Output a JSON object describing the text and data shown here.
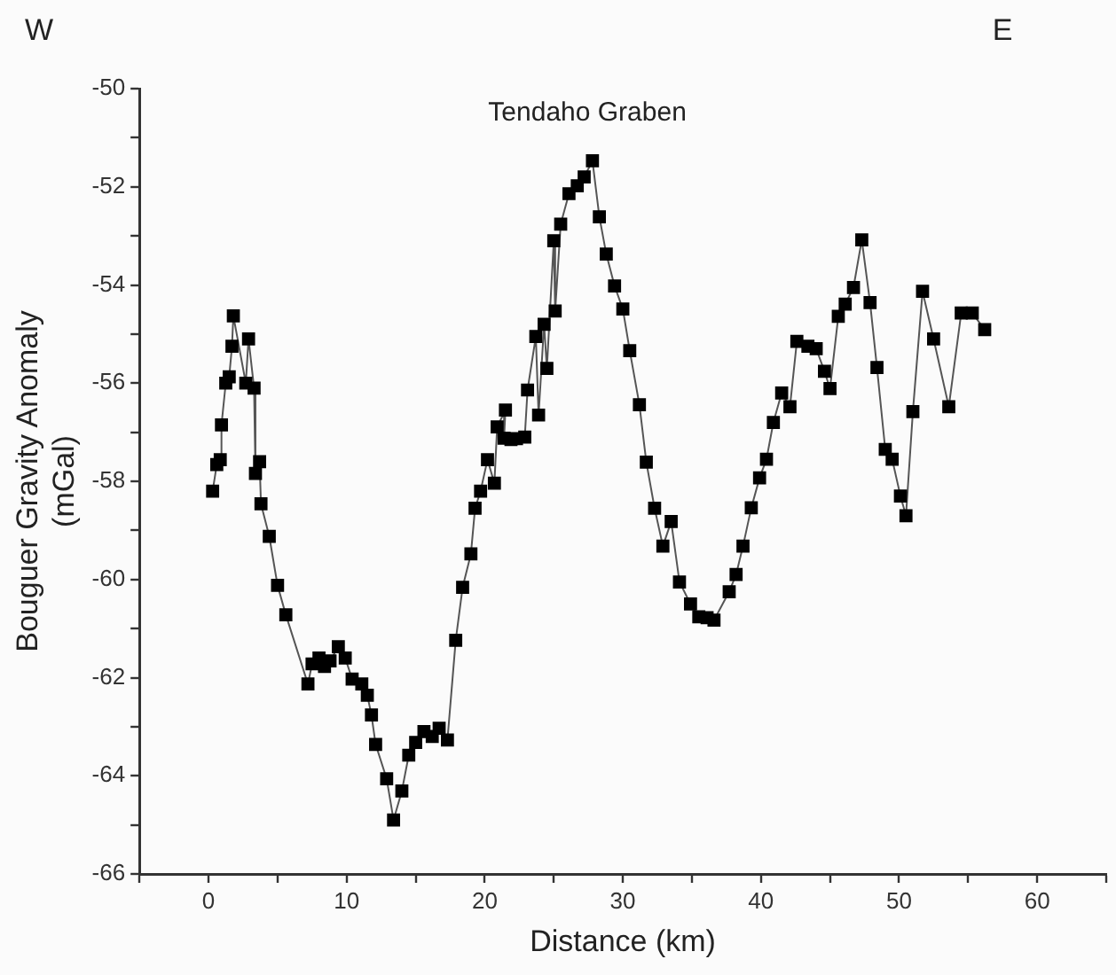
{
  "chart_data": {
    "type": "line",
    "title": "Tendaho Graben",
    "xlabel": "Distance (km)",
    "ylabel": "Bouguer Gravity Anomaly\n(mGal)",
    "annotations": [
      "W",
      "E"
    ],
    "marker": "square",
    "line_style": "solid",
    "grid": false,
    "legend": false,
    "xlim": [
      -5,
      65
    ],
    "xticks": [
      {
        "value": -5,
        "label": null
      },
      0,
      {
        "value": 5,
        "label": null
      },
      10,
      {
        "value": 15,
        "label": null
      },
      20,
      {
        "value": 25,
        "label": null
      },
      30,
      {
        "value": 35,
        "label": null
      },
      40,
      {
        "value": 45,
        "label": null
      },
      50,
      {
        "value": 55,
        "label": null
      },
      60,
      {
        "value": 65,
        "label": null
      }
    ],
    "ylim": [
      -66,
      -50
    ],
    "yticks": [
      -66,
      {
        "value": -65,
        "label": null
      },
      -64,
      {
        "value": -63,
        "label": null
      },
      -62,
      {
        "value": -61,
        "label": null
      },
      -60,
      {
        "value": -59,
        "label": null
      },
      -58,
      {
        "value": -57,
        "label": null
      },
      -56,
      {
        "value": -55,
        "label": null
      },
      -54,
      {
        "value": -53,
        "label": null
      },
      -52,
      {
        "value": -51,
        "label": null
      },
      -50
    ],
    "series": [
      {
        "color": "#000000",
        "x": [
          0.3,
          0.6,
          0.85,
          0.94,
          1.25,
          1.5,
          1.7,
          1.8,
          2.7,
          2.9,
          3.3,
          3.4,
          3.7,
          3.8,
          4.4,
          5.0,
          5.6,
          7.2,
          7.5,
          8.0,
          8.4,
          8.8,
          9.4,
          9.9,
          10.4,
          11.1,
          11.5,
          11.8,
          12.1,
          12.9,
          13.4,
          14.0,
          14.5,
          15.0,
          15.6,
          16.2,
          16.7,
          17.3,
          17.9,
          18.4,
          19.0,
          19.3,
          19.7,
          20.2,
          20.7,
          20.9,
          21.5,
          21.4,
          21.9,
          22.3,
          22.9,
          23.1,
          23.7,
          23.9,
          24.3,
          24.5,
          25.0,
          25.1,
          25.5,
          26.1,
          26.7,
          27.2,
          27.8,
          28.3,
          28.8,
          29.4,
          30.0,
          30.5,
          31.2,
          31.7,
          32.3,
          32.9,
          33.5,
          34.1,
          34.9,
          35.5,
          36.1,
          36.6,
          37.7,
          38.2,
          38.7,
          39.3,
          39.9,
          40.4,
          40.9,
          41.5,
          42.1,
          42.6,
          43.4,
          44.0,
          44.6,
          45.0,
          45.6,
          46.1,
          46.7,
          47.3,
          47.9,
          48.4,
          49.0,
          49.5,
          50.1,
          50.5,
          51.0,
          51.7,
          52.5,
          53.6,
          54.5,
          55.3,
          56.2
        ],
        "values": [
          -58.2,
          -57.66,
          -57.56,
          -56.85,
          -56.0,
          -55.87,
          -55.25,
          -54.63,
          -56.0,
          -55.1,
          -56.1,
          -57.84,
          -57.6,
          -58.46,
          -59.12,
          -60.12,
          -60.72,
          -62.13,
          -61.72,
          -61.6,
          -61.77,
          -61.66,
          -61.37,
          -61.6,
          -62.03,
          -62.13,
          -62.36,
          -62.76,
          -63.36,
          -64.06,
          -64.9,
          -64.31,
          -63.58,
          -63.32,
          -63.1,
          -63.2,
          -63.03,
          -63.27,
          -61.24,
          -60.16,
          -59.48,
          -58.55,
          -58.2,
          -57.56,
          -58.04,
          -56.89,
          -56.55,
          -57.12,
          -57.15,
          -57.13,
          -57.1,
          -56.14,
          -55.05,
          -56.65,
          -54.8,
          -55.7,
          -53.1,
          -54.53,
          -52.76,
          -52.14,
          -51.98,
          -51.8,
          -51.47,
          -52.61,
          -53.37,
          -54.02,
          -54.49,
          -55.34,
          -56.44,
          -57.61,
          -58.55,
          -59.32,
          -58.82,
          -60.05,
          -60.5,
          -60.76,
          -60.78,
          -60.83,
          -60.25,
          -59.9,
          -59.32,
          -58.54,
          -57.93,
          -57.55,
          -56.8,
          -56.2,
          -56.48,
          -55.15,
          -55.25,
          -55.3,
          -55.76,
          -56.11,
          -54.64,
          -54.39,
          -54.05,
          -53.08,
          -54.36,
          -55.68,
          -57.35,
          -57.55,
          -58.3,
          -58.7,
          -56.58,
          -54.13,
          -55.1,
          -56.48,
          -54.57,
          -54.57,
          -54.91
        ]
      }
    ]
  }
}
